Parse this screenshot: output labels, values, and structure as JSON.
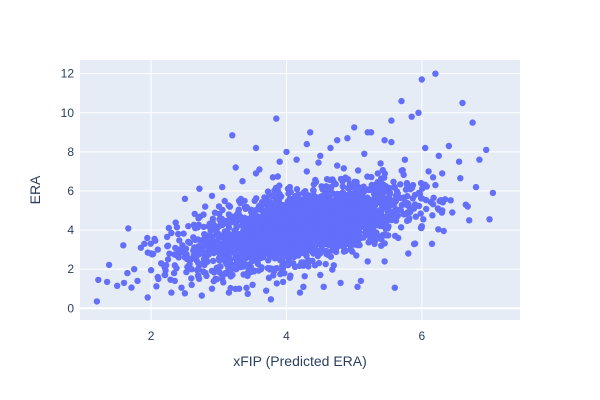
{
  "chart_data": {
    "type": "scatter",
    "title": "",
    "xlabel": "xFIP (Predicted ERA)",
    "ylabel": "ERA",
    "xlim": [
      0.95,
      7.45
    ],
    "ylim": [
      -0.6,
      12.7
    ],
    "xticks": [
      2,
      4,
      6
    ],
    "yticks": [
      0,
      2,
      4,
      6,
      8,
      10,
      12
    ],
    "grid": true,
    "legend": "none",
    "colors": {
      "marker": "#636efa",
      "plot_bg": "#e5ecf6",
      "grid": "#ffffff",
      "text": "#2a3f5f"
    },
    "series": [
      {
        "points": [
          [
            1.2,
            0.35
          ],
          [
            1.22,
            1.45
          ],
          [
            1.35,
            1.35
          ],
          [
            1.5,
            1.15
          ],
          [
            1.6,
            1.3
          ],
          [
            1.65,
            1.8
          ],
          [
            1.75,
            2.0
          ],
          [
            1.8,
            1.4
          ],
          [
            1.85,
            3.1
          ],
          [
            1.9,
            3.3
          ],
          [
            1.95,
            0.55
          ],
          [
            2.0,
            1.95
          ],
          [
            2.0,
            2.8
          ],
          [
            2.05,
            3.55
          ],
          [
            2.1,
            1.6
          ],
          [
            2.1,
            3.0
          ],
          [
            2.15,
            2.3
          ],
          [
            2.2,
            1.7
          ],
          [
            2.25,
            3.2
          ],
          [
            2.25,
            2.5
          ],
          [
            2.3,
            0.8
          ],
          [
            2.3,
            3.85
          ],
          [
            2.35,
            1.4
          ],
          [
            2.35,
            2.2
          ],
          [
            2.4,
            3.0
          ],
          [
            2.4,
            3.8
          ],
          [
            2.45,
            1.05
          ],
          [
            2.5,
            2.6
          ],
          [
            2.5,
            5.6
          ],
          [
            2.55,
            4.2
          ],
          [
            2.6,
            1.2
          ],
          [
            2.6,
            2.0
          ],
          [
            2.65,
            3.5
          ],
          [
            2.7,
            4.6
          ],
          [
            2.7,
            1.6
          ],
          [
            2.75,
            0.65
          ],
          [
            2.8,
            5.2
          ],
          [
            2.8,
            2.4
          ],
          [
            2.85,
            3.1
          ],
          [
            2.9,
            1.0
          ],
          [
            2.9,
            5.75
          ],
          [
            2.95,
            4.0
          ],
          [
            3.0,
            3.0
          ],
          [
            3.05,
            1.5
          ],
          [
            3.05,
            6.2
          ],
          [
            3.1,
            3.5
          ],
          [
            3.15,
            0.8
          ],
          [
            3.15,
            4.8
          ],
          [
            3.2,
            8.85
          ],
          [
            3.2,
            2.2
          ],
          [
            3.25,
            7.2
          ],
          [
            3.3,
            5.5
          ],
          [
            3.3,
            1.0
          ],
          [
            3.35,
            6.5
          ],
          [
            3.4,
            3.2
          ],
          [
            3.45,
            2.0
          ],
          [
            3.5,
            5.0
          ],
          [
            3.5,
            1.2
          ],
          [
            3.55,
            6.9
          ],
          [
            3.6,
            3.8
          ],
          [
            3.6,
            7.1
          ],
          [
            3.65,
            2.6
          ],
          [
            3.7,
            0.9
          ],
          [
            3.7,
            5.6
          ],
          [
            3.75,
            4.2
          ],
          [
            3.8,
            6.7
          ],
          [
            3.85,
            9.7
          ],
          [
            3.85,
            2.9
          ],
          [
            3.9,
            7.5
          ],
          [
            3.95,
            1.35
          ],
          [
            4.0,
            8.0
          ],
          [
            4.0,
            4.5
          ],
          [
            4.05,
            6.2
          ],
          [
            4.1,
            2.3
          ],
          [
            4.15,
            7.6
          ],
          [
            4.2,
            3.3
          ],
          [
            4.25,
            1.1
          ],
          [
            4.25,
            5.9
          ],
          [
            4.3,
            7.0
          ],
          [
            4.35,
            9.0
          ],
          [
            4.4,
            2.8
          ],
          [
            4.4,
            5.4
          ],
          [
            4.5,
            7.8
          ],
          [
            4.5,
            1.7
          ],
          [
            4.55,
            3.9
          ],
          [
            4.6,
            6.6
          ],
          [
            4.65,
            8.2
          ],
          [
            4.7,
            2.2
          ],
          [
            4.7,
            4.9
          ],
          [
            4.75,
            7.3
          ],
          [
            4.8,
            1.3
          ],
          [
            4.85,
            5.8
          ],
          [
            4.9,
            8.7
          ],
          [
            4.95,
            3.0
          ],
          [
            5.0,
            9.25
          ],
          [
            5.0,
            6.4
          ],
          [
            5.05,
            1.1
          ],
          [
            5.1,
            4.4
          ],
          [
            5.15,
            7.9
          ],
          [
            5.2,
            2.4
          ],
          [
            5.25,
            9.0
          ],
          [
            5.3,
            5.5
          ],
          [
            5.35,
            6.9
          ],
          [
            5.4,
            3.2
          ],
          [
            5.45,
            8.6
          ],
          [
            5.5,
            4.6
          ],
          [
            5.55,
            9.6
          ],
          [
            5.6,
            6.2
          ],
          [
            5.6,
            1.05
          ],
          [
            5.65,
            3.6
          ],
          [
            5.7,
            10.6
          ],
          [
            5.75,
            7.6
          ],
          [
            5.8,
            2.8
          ],
          [
            5.85,
            9.8
          ],
          [
            5.9,
            5.8
          ],
          [
            5.95,
            10.0
          ],
          [
            6.0,
            4.2
          ],
          [
            6.0,
            11.7
          ],
          [
            6.05,
            8.2
          ],
          [
            6.1,
            7.0
          ],
          [
            6.15,
            3.3
          ],
          [
            6.2,
            12.0
          ],
          [
            6.2,
            6.3
          ],
          [
            6.25,
            7.8
          ],
          [
            6.3,
            5.0
          ],
          [
            6.4,
            8.3
          ],
          [
            6.45,
            4.9
          ],
          [
            6.55,
            7.5
          ],
          [
            6.6,
            10.5
          ],
          [
            6.65,
            5.3
          ],
          [
            6.7,
            4.5
          ],
          [
            6.75,
            9.5
          ],
          [
            6.8,
            6.2
          ],
          [
            6.85,
            7.6
          ],
          [
            6.95,
            8.1
          ],
          [
            7.0,
            4.55
          ],
          [
            7.05,
            5.9
          ],
          [
            5.3,
            3.3
          ],
          [
            5.0,
            3.8
          ],
          [
            4.85,
            2.9
          ],
          [
            2.55,
            3.4
          ],
          [
            2.2,
            2.1
          ],
          [
            3.0,
            2.1
          ],
          [
            5.2,
            9.0
          ],
          [
            4.2,
            0.8
          ],
          [
            4.55,
            1.1
          ],
          [
            5.1,
            1.4
          ],
          [
            5.45,
            2.4
          ],
          [
            4.3,
            8.4
          ],
          [
            3.55,
            8.2
          ],
          [
            4.75,
            8.6
          ],
          [
            5.55,
            8.5
          ],
          [
            6.3,
            6.9
          ]
        ]
      }
    ]
  }
}
